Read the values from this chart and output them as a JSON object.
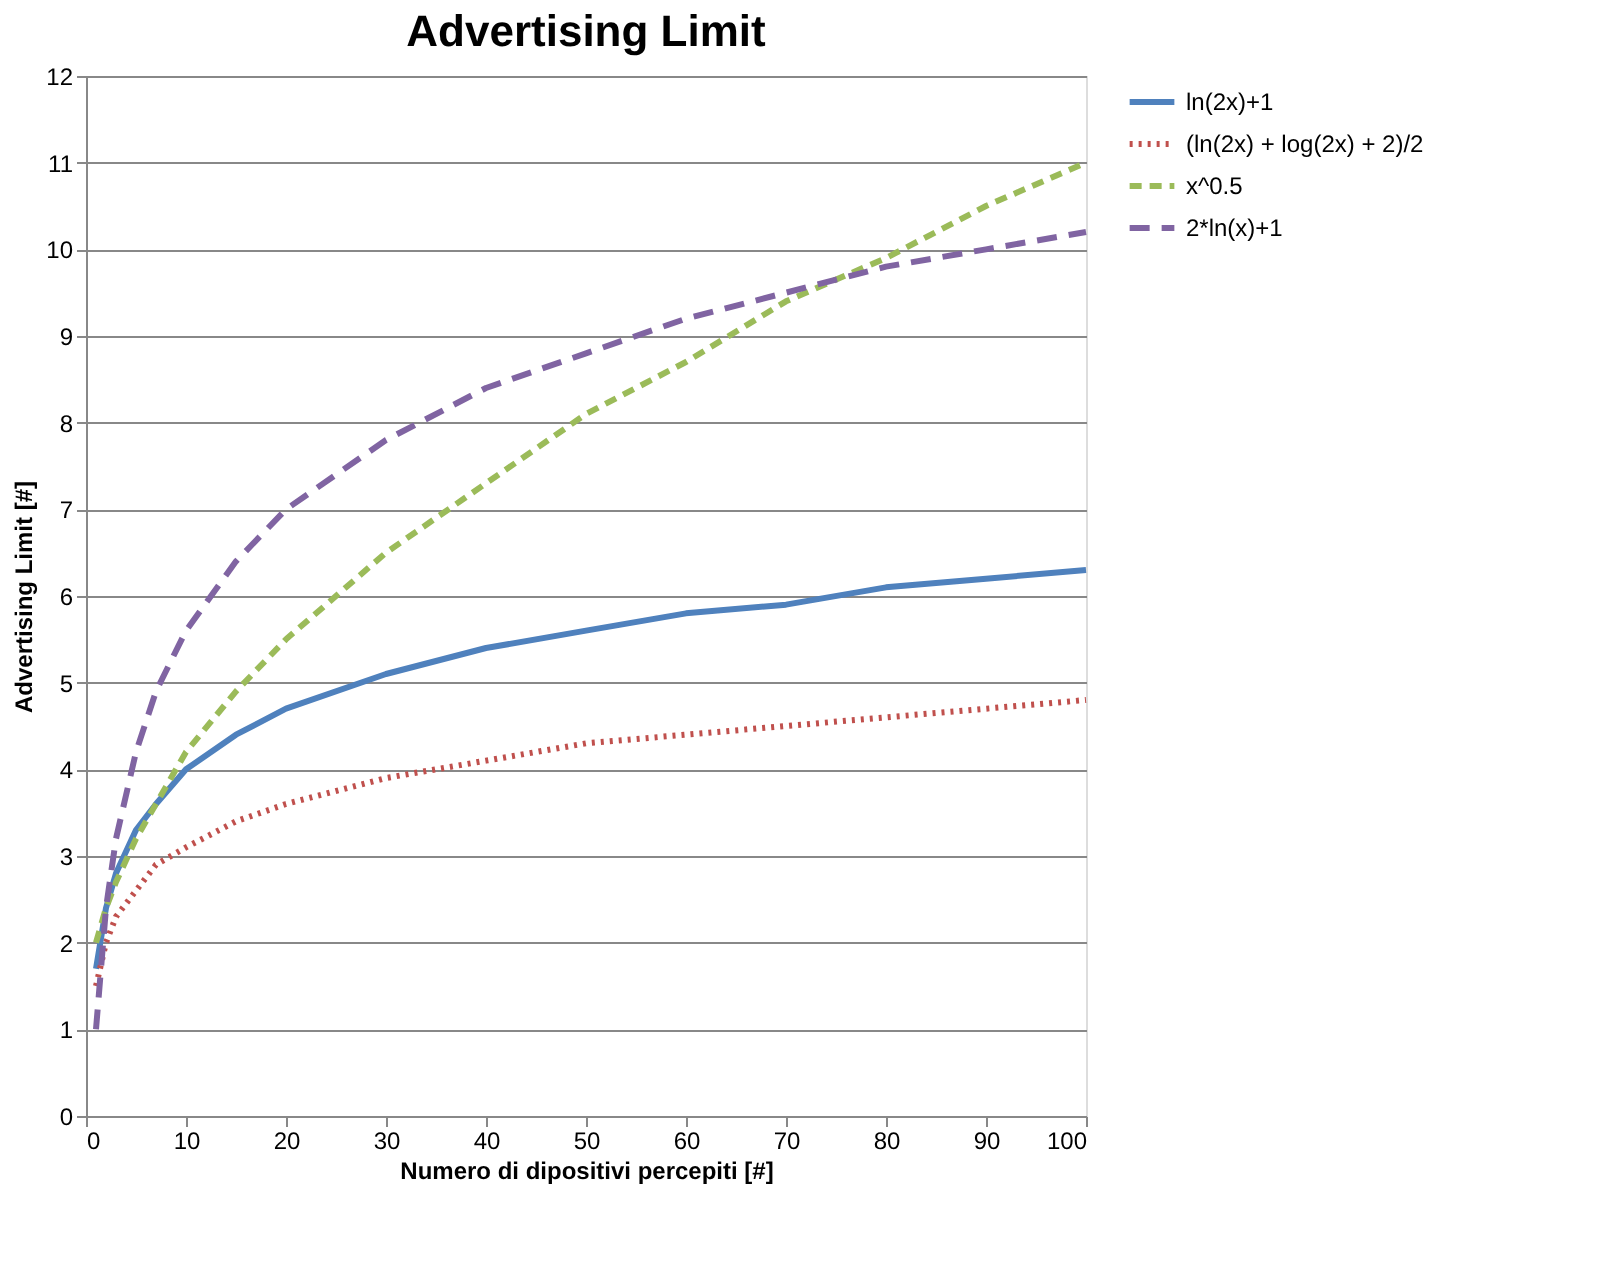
{
  "chart_data": {
    "type": "line",
    "title": "Advertising Limit",
    "xlabel": "Numero di dipositivi  percepiti [#]",
    "ylabel": "Advertising Limit [#]",
    "x": [
      1,
      2,
      3,
      5,
      7,
      10,
      15,
      20,
      30,
      40,
      50,
      60,
      70,
      80,
      90,
      100
    ],
    "series": [
      {
        "name": "ln(2x)+1",
        "color": "#4f81bd",
        "line_style": "solid",
        "values": [
          1.7,
          2.4,
          2.8,
          3.3,
          3.6,
          4.0,
          4.4,
          4.7,
          5.1,
          5.4,
          5.6,
          5.8,
          5.9,
          6.1,
          6.2,
          6.3
        ]
      },
      {
        "name": "(ln(2x) + log(2x) + 2)/2",
        "color": "#c0504d",
        "line_style": "dotted",
        "values": [
          1.5,
          2.0,
          2.3,
          2.6,
          2.9,
          3.1,
          3.4,
          3.6,
          3.9,
          4.1,
          4.3,
          4.4,
          4.5,
          4.6,
          4.7,
          4.8
        ]
      },
      {
        "name": "x^0.5",
        "color": "#9bbb59",
        "line_style": "dashed",
        "values": [
          2.0,
          2.4,
          2.7,
          3.2,
          3.6,
          4.2,
          4.9,
          5.5,
          6.5,
          7.3,
          8.1,
          8.7,
          9.4,
          9.9,
          10.5,
          11.0
        ]
      },
      {
        "name": "2*ln(x)+1",
        "color": "#8064a2",
        "line_style": "dashed",
        "values": [
          1.0,
          2.4,
          3.2,
          4.2,
          4.9,
          5.6,
          6.4,
          7.0,
          7.8,
          8.4,
          8.8,
          9.2,
          9.5,
          9.8,
          10.0,
          10.2
        ]
      }
    ],
    "xlim": [
      0,
      100
    ],
    "xticks": [
      0,
      10,
      20,
      30,
      40,
      50,
      60,
      70,
      80,
      90,
      100
    ],
    "ylim": [
      0,
      12
    ],
    "yticks": [
      0,
      1,
      2,
      3,
      4,
      5,
      6,
      7,
      8,
      9,
      10,
      11,
      12
    ],
    "grid": "y",
    "legend": "right",
    "marker": "none"
  }
}
